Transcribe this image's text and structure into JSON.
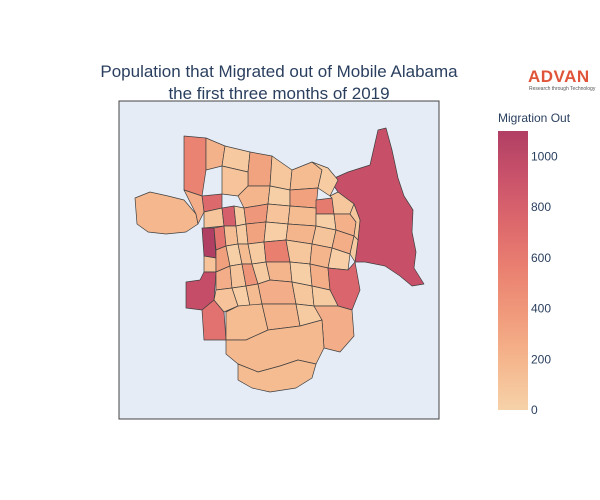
{
  "title_lines": [
    "Population that Migrated out of Mobile Alabama",
    "the first three months of 2019"
  ],
  "logo": {
    "text": "ADVAN",
    "tagline": "Research through Technology",
    "color": "#e0553a"
  },
  "colorbar": {
    "title": "Migration Out",
    "min": 0,
    "max": 1100,
    "ticks": [
      "0",
      "200",
      "400",
      "600",
      "800",
      "1000"
    ],
    "tick_values": [
      0,
      200,
      400,
      600,
      800,
      1000
    ],
    "colorscale": [
      "#f6d2a9",
      "#f5b78e",
      "#f19c7c",
      "#ea8171",
      "#dd686c",
      "#ca536b",
      "#b13f64"
    ]
  },
  "map": {
    "background": "#e5ecf6",
    "border": "#444444"
  }
}
